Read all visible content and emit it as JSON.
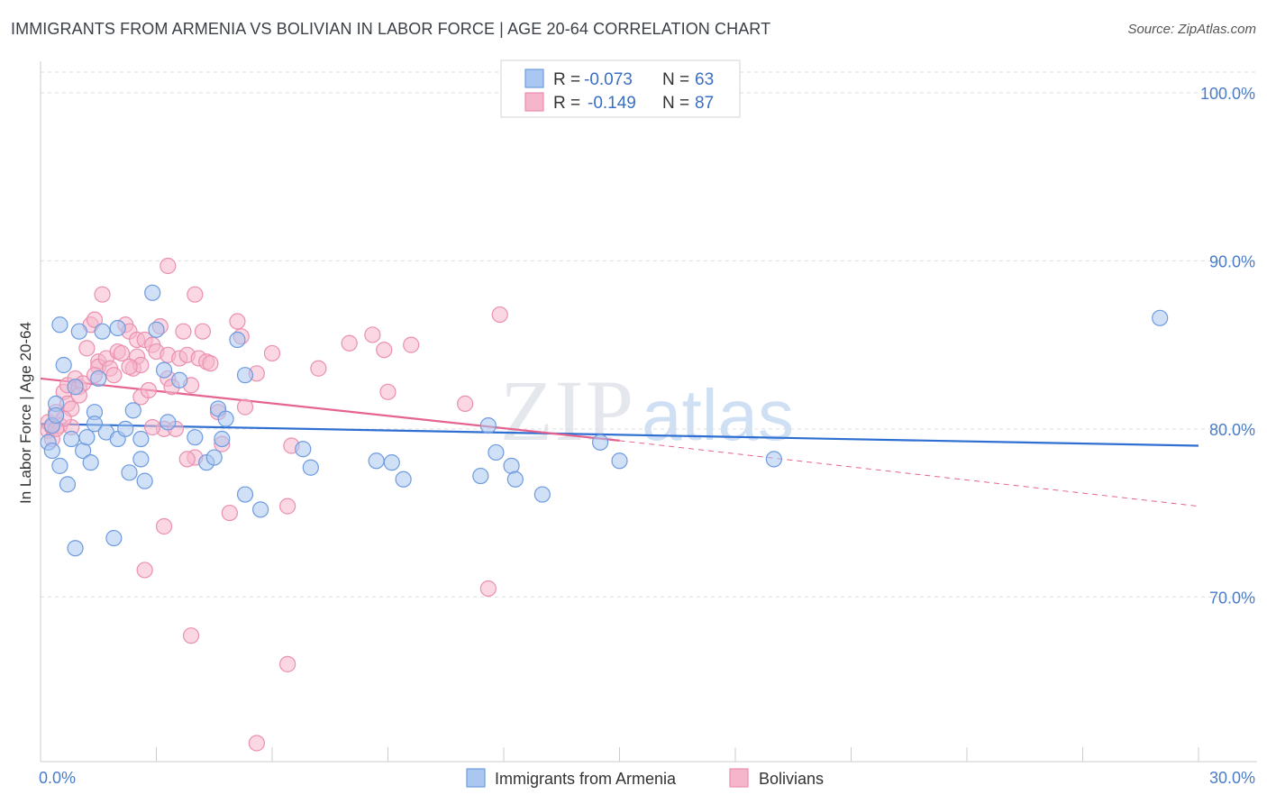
{
  "header": {
    "title": "IMMIGRANTS FROM ARMENIA VS BOLIVIAN IN LABOR FORCE | AGE 20-64 CORRELATION CHART",
    "source": "Source: ZipAtlas.com"
  },
  "watermark": {
    "zip": "ZIP",
    "atlas": "atlas"
  },
  "legend_top": {
    "series1": {
      "r_label": "R = ",
      "r_value": "-0.073",
      "n_label": "N = ",
      "n_value": "63"
    },
    "series2": {
      "r_label": "R = ",
      "r_value": "-0.149",
      "n_label": "N = ",
      "n_value": "87"
    }
  },
  "legend_bottom": {
    "series1": "Immigrants from Armenia",
    "series2": "Bolivians"
  },
  "colors": {
    "blue_fill": "#a9c7f0",
    "blue_stroke": "#6e9be0",
    "blue_line": "#2e6fd1",
    "pink_fill": "#f5b6cb",
    "pink_stroke": "#eb8fb0",
    "pink_line": "#e5648f",
    "grid": "#dddddd",
    "tick_text": "#4a7cc9"
  },
  "chart_data": {
    "type": "scatter",
    "title": "IMMIGRANTS FROM ARMENIA VS BOLIVIAN IN LABOR FORCE | AGE 20-64 CORRELATION CHART",
    "xlabel": "",
    "ylabel": "In Labor Force | Age 20-64",
    "xlim": [
      0,
      30
    ],
    "ylim": [
      60.2,
      101.5
    ],
    "x_tick_labels": [
      "0.0%",
      "30.0%"
    ],
    "x_ticks": [
      0,
      30
    ],
    "y_ticks": [
      70,
      80,
      90,
      100
    ],
    "y_tick_labels": [
      "70.0%",
      "80.0%",
      "90.0%",
      "100.0%"
    ],
    "series": [
      {
        "name": "Immigrants from Armenia",
        "R": -0.073,
        "N": 63,
        "trend": {
          "x": [
            0,
            30
          ],
          "y": [
            80.3,
            79.0
          ]
        },
        "points": [
          [
            0.2,
            79.2
          ],
          [
            0.3,
            78.7
          ],
          [
            0.3,
            80.2
          ],
          [
            0.4,
            81.5
          ],
          [
            0.4,
            80.8
          ],
          [
            0.5,
            77.8
          ],
          [
            0.5,
            86.2
          ],
          [
            0.6,
            83.8
          ],
          [
            0.7,
            76.7
          ],
          [
            0.8,
            79.4
          ],
          [
            0.9,
            82.5
          ],
          [
            0.9,
            72.9
          ],
          [
            1.0,
            85.8
          ],
          [
            1.1,
            78.7
          ],
          [
            1.2,
            79.5
          ],
          [
            1.3,
            78.0
          ],
          [
            1.4,
            81.0
          ],
          [
            1.5,
            83.0
          ],
          [
            1.4,
            80.3
          ],
          [
            1.6,
            85.8
          ],
          [
            1.7,
            79.8
          ],
          [
            1.9,
            73.5
          ],
          [
            2.0,
            79.4
          ],
          [
            2.0,
            86.0
          ],
          [
            2.2,
            80.0
          ],
          [
            2.3,
            77.4
          ],
          [
            2.4,
            81.1
          ],
          [
            2.6,
            79.4
          ],
          [
            2.6,
            78.2
          ],
          [
            2.7,
            76.9
          ],
          [
            2.9,
            88.1
          ],
          [
            3.0,
            85.9
          ],
          [
            3.2,
            83.5
          ],
          [
            3.3,
            80.4
          ],
          [
            3.6,
            82.9
          ],
          [
            4.0,
            79.5
          ],
          [
            4.3,
            78.0
          ],
          [
            4.5,
            78.3
          ],
          [
            4.6,
            81.2
          ],
          [
            4.7,
            79.4
          ],
          [
            4.8,
            80.6
          ],
          [
            5.1,
            85.3
          ],
          [
            5.3,
            83.2
          ],
          [
            5.3,
            76.1
          ],
          [
            5.7,
            75.2
          ],
          [
            6.8,
            78.8
          ],
          [
            7.0,
            77.7
          ],
          [
            8.7,
            78.1
          ],
          [
            9.1,
            78.0
          ],
          [
            9.4,
            77.0
          ],
          [
            11.4,
            77.2
          ],
          [
            11.6,
            80.2
          ],
          [
            11.8,
            78.6
          ],
          [
            12.2,
            77.8
          ],
          [
            12.3,
            77.0
          ],
          [
            13.0,
            76.1
          ],
          [
            14.5,
            79.2
          ],
          [
            15.0,
            78.1
          ],
          [
            19.0,
            78.2
          ],
          [
            29.0,
            86.6
          ]
        ]
      },
      {
        "name": "Bolivians",
        "R": -0.149,
        "N": 87,
        "trend": {
          "x": [
            0,
            15
          ],
          "y": [
            83.0,
            79.3
          ]
        },
        "trend_ext": {
          "x": [
            15,
            30
          ],
          "y": [
            79.3,
            75.4
          ]
        },
        "points": [
          [
            0.2,
            80.4
          ],
          [
            0.2,
            79.9
          ],
          [
            0.3,
            79.4
          ],
          [
            0.3,
            80.1
          ],
          [
            0.4,
            81.0
          ],
          [
            0.5,
            80.2
          ],
          [
            0.6,
            82.2
          ],
          [
            0.7,
            82.6
          ],
          [
            0.7,
            81.5
          ],
          [
            0.8,
            80.1
          ],
          [
            0.9,
            83.0
          ],
          [
            1.0,
            82.5
          ],
          [
            1.1,
            82.7
          ],
          [
            1.2,
            84.8
          ],
          [
            1.3,
            86.2
          ],
          [
            1.4,
            86.5
          ],
          [
            1.5,
            84.0
          ],
          [
            1.5,
            83.7
          ],
          [
            1.6,
            88.0
          ],
          [
            1.7,
            84.2
          ],
          [
            1.8,
            83.6
          ],
          [
            1.9,
            83.2
          ],
          [
            2.0,
            84.6
          ],
          [
            2.1,
            84.5
          ],
          [
            2.2,
            86.2
          ],
          [
            2.3,
            85.8
          ],
          [
            2.4,
            83.6
          ],
          [
            2.5,
            85.3
          ],
          [
            2.5,
            84.3
          ],
          [
            2.6,
            83.8
          ],
          [
            2.6,
            81.9
          ],
          [
            2.7,
            85.3
          ],
          [
            2.8,
            82.3
          ],
          [
            2.9,
            85.0
          ],
          [
            3.0,
            84.6
          ],
          [
            3.1,
            86.1
          ],
          [
            3.2,
            80.0
          ],
          [
            3.3,
            84.4
          ],
          [
            3.3,
            83.0
          ],
          [
            3.4,
            82.5
          ],
          [
            3.5,
            80.0
          ],
          [
            3.6,
            84.2
          ],
          [
            3.7,
            85.8
          ],
          [
            3.8,
            84.4
          ],
          [
            3.9,
            82.6
          ],
          [
            4.0,
            78.3
          ],
          [
            4.1,
            84.2
          ],
          [
            4.2,
            85.8
          ],
          [
            4.3,
            84.0
          ],
          [
            4.4,
            83.9
          ],
          [
            4.6,
            81.0
          ],
          [
            4.7,
            79.1
          ],
          [
            4.9,
            75.0
          ],
          [
            5.1,
            86.4
          ],
          [
            5.2,
            85.5
          ],
          [
            5.3,
            81.3
          ],
          [
            5.6,
            83.3
          ],
          [
            6.0,
            84.5
          ],
          [
            6.4,
            75.4
          ],
          [
            6.5,
            79.0
          ],
          [
            7.2,
            83.6
          ],
          [
            8.0,
            85.1
          ],
          [
            8.6,
            85.6
          ],
          [
            8.9,
            84.7
          ],
          [
            9.0,
            82.2
          ],
          [
            9.6,
            85.0
          ],
          [
            11.0,
            81.5
          ],
          [
            11.6,
            70.5
          ],
          [
            11.9,
            86.8
          ],
          [
            3.2,
            74.2
          ],
          [
            2.7,
            71.6
          ],
          [
            3.9,
            67.7
          ],
          [
            6.4,
            66.0
          ],
          [
            5.6,
            61.3
          ],
          [
            3.3,
            89.7
          ],
          [
            4.0,
            88.0
          ],
          [
            2.3,
            83.7
          ],
          [
            1.4,
            83.2
          ],
          [
            1.0,
            82.0
          ],
          [
            0.8,
            81.2
          ],
          [
            0.6,
            80.6
          ],
          [
            0.4,
            80.0
          ],
          [
            3.8,
            78.2
          ],
          [
            2.9,
            80.1
          ]
        ]
      }
    ]
  }
}
